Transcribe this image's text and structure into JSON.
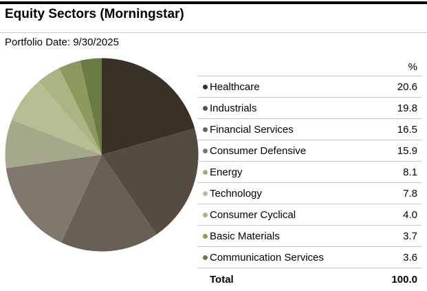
{
  "page": {
    "title": "Equity Sectors (Morningstar)",
    "portfolio_date": "Portfolio Date: 9/30/2025"
  },
  "chart_data": {
    "type": "pie",
    "title": "Equity Sectors (Morningstar)",
    "unit_header": "%",
    "categories": [
      "Healthcare",
      "Industrials",
      "Financial Services",
      "Consumer Defensive",
      "Energy",
      "Technology",
      "Consumer Cyclical",
      "Basic Materials",
      "Communication Services"
    ],
    "values": [
      20.6,
      19.8,
      16.5,
      15.9,
      8.1,
      7.8,
      4.0,
      3.7,
      3.6
    ],
    "colors": [
      "#3A3126",
      "#554B40",
      "#696055",
      "#80786C",
      "#A5A88A",
      "#B4BE92",
      "#A9B583",
      "#8B9B5F",
      "#6B7B44"
    ],
    "start_angle_deg": -90,
    "direction": "clockwise",
    "legend_position": "right",
    "total_label": "Total",
    "total_value": "100.0"
  }
}
